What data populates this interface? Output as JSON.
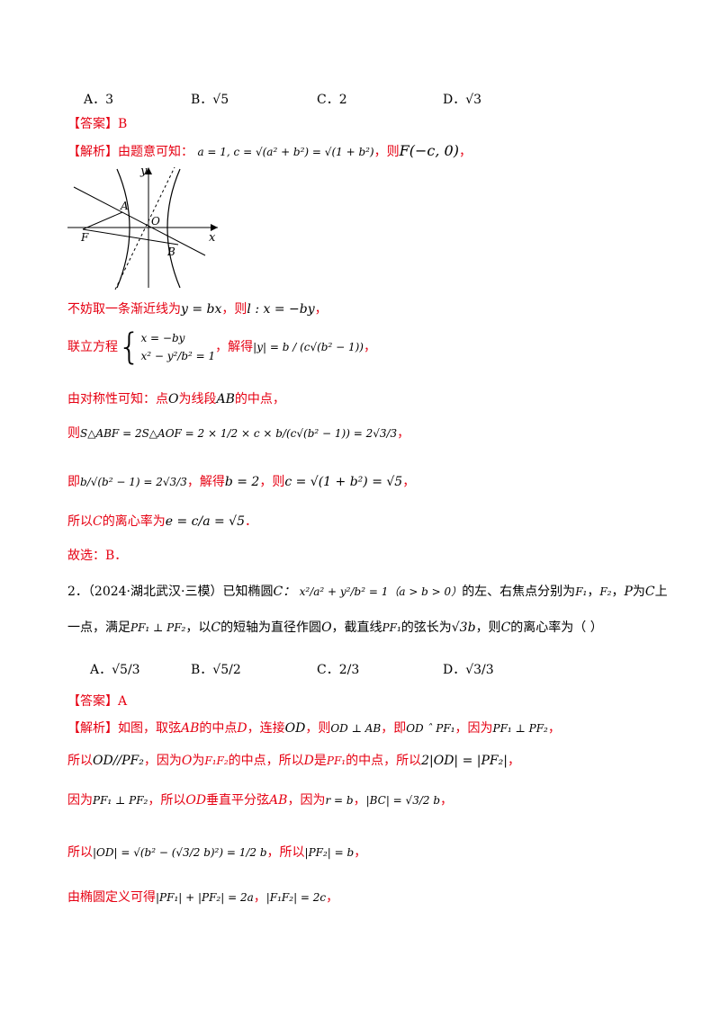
{
  "q1": {
    "options": [
      "A．3",
      "B．√5",
      "C．2",
      "D．√3"
    ],
    "answer_tag": "【答案】",
    "answer_value": "B",
    "analysis_tag": "【解析】",
    "line1_text": "由题意可知：",
    "line1_math": "a = 1, c = √(a² + b²) = √(1 + b²)",
    "line1_then": "，则",
    "line1_F": "F(−c, 0)",
    "line1_end": "，",
    "figure": {
      "labels": {
        "y": "y",
        "x": "x",
        "A": "A",
        "O": "O",
        "F": "F",
        "B": "B"
      }
    },
    "step1": "不妨取一条渐近线为",
    "step1_math1": "y = bx",
    "step1_then": "，则",
    "step1_math2": "l : x = −by",
    "step1_end": "，",
    "step2_label": "联立方程",
    "step2_eq1": "x = −by",
    "step2_eq2": "x² − y²/b² = 1",
    "step2_solve": "，解得",
    "step2_result": "|y| = b / (c√(b² − 1))",
    "step2_end": "，",
    "step3_a": "由对称性可知：点",
    "step3_O": "O",
    "step3_b": "为线段",
    "step3_AB": "AB",
    "step3_c": "的中点，",
    "step4_then": "则",
    "step4_math": "S△ABF = 2S△AOF = 2 × 1/2 × c × b/(c√(b² − 1)) = 2√3/3",
    "step4_end": "，",
    "step5_a": "即",
    "step5_math1": "b/√(b² − 1) = 2√3/3",
    "step5_b": "，解得",
    "step5_math2": "b = 2",
    "step5_c": "，则",
    "step5_math3": "c = √(1 + b²) = √5",
    "step5_end": "，",
    "step6_a": "所以",
    "step6_C": "C",
    "step6_b": "的离心率为",
    "step6_math": "e = c/a = √5",
    "step6_end": "．",
    "conclusion": "故选：B．"
  },
  "q2": {
    "number": "2．",
    "source": "（2024·湖北武汉·三模）",
    "stem_a": "已知椭圆",
    "stem_C": "C：",
    "stem_eq": "x²/a² + y²/b² = 1",
    "stem_cond": "（a > b > 0）",
    "stem_b": "的左、右焦点分别为",
    "stem_F1": "F₁",
    "stem_F2": "F₂",
    "stem_c": "，",
    "stem_P": "P",
    "stem_d": "为",
    "stem_e": "上",
    "stem_line2_a": "一点，满足",
    "stem_perp": "PF₁ ⊥ PF₂",
    "stem_line2_b": "，以",
    "stem_line2_c": "的短轴为直径作圆",
    "stem_O": "O",
    "stem_line2_d": "，截直线",
    "stem_PF1": "PF₁",
    "stem_line2_e": "的弦长为",
    "stem_chord": "√3b",
    "stem_line2_f": "，则",
    "stem_line2_g": "的离心率为（    ）",
    "options": [
      "A．√5/3",
      "B．√5/2",
      "C．2/3",
      "D．√3/3"
    ],
    "answer_tag": "【答案】",
    "answer_value": "A",
    "analysis_tag": "【解析】",
    "a1": "如图，取弦",
    "a1_AB": "AB",
    "a1_b": "的中点",
    "a1_D": "D",
    "a1_c": "，连接",
    "a1_OD": "OD",
    "a1_d": "，则",
    "a1_perp": "OD ⊥ AB",
    "a1_e": "，即",
    "a1_m": "OD ˆ PF₁",
    "a1_f": "，因为",
    "a1_m2": "PF₁ ⊥ PF₂",
    "a1_g": "，",
    "a2": "所以",
    "a2_m": "OD//PF₂",
    "a2_b": "，因为",
    "a2_O": "O",
    "a2_c": "为",
    "a2_F": "F₁F₂",
    "a2_d": "的中点，所以",
    "a2_D": "D",
    "a2_e": "是",
    "a2_PF1": "PF₁",
    "a2_f": "的中点，所以",
    "a2_m2": "2|OD| = |PF₂|",
    "a2_g": "，",
    "a3": "因为",
    "a3_m": "PF₁ ⊥ PF₂",
    "a3_b": "，所以",
    "a3_OD": "OD",
    "a3_c": "垂直平分弦",
    "a3_AB": "AB",
    "a3_d": "，因为",
    "a3_m2": "r = b",
    "a3_e": "，",
    "a3_m3": "|BC| = √3/2 b",
    "a3_f": "，",
    "a4": "所以",
    "a4_m": "|OD| = √(b² − (√3/2 b)²) = 1/2 b",
    "a4_b": "，所以",
    "a4_m2": "|PF₂| = b",
    "a4_c": "，",
    "a5": "由椭圆定义可得",
    "a5_m": "|PF₁| + |PF₂| = 2a",
    "a5_b": "，",
    "a5_m2": "|F₁F₂| = 2c",
    "a5_c": "，"
  }
}
